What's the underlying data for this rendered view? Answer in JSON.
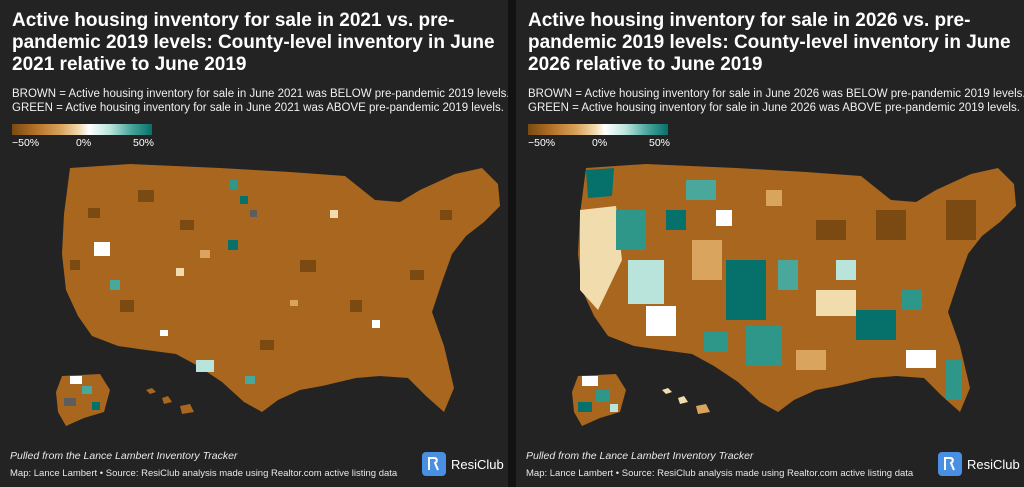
{
  "panels": [
    {
      "title": "Active housing inventory for sale in 2021 vs. pre-pandemic 2019 levels: County-level inventory in June 2021 relative to June 2019",
      "legend_brown": "BROWN = Active housing inventory for sale in June 2021 was BELOW pre-pandemic 2019 levels.",
      "legend_green": "GREEN = Active housing inventory for sale in June 2021 was ABOVE pre-pandemic 2019 levels.",
      "scale_labels": [
        "−50%",
        "0%",
        "50%"
      ],
      "source_note": "Pulled from the Lance Lambert Inventory Tracker",
      "credit": "Map: Lance Lambert • Source: ResiClub analysis made using Realtor.com active listing data",
      "brand": "ResiClub"
    },
    {
      "title": "Active housing inventory for sale in 2026 vs. pre-pandemic 2019 levels: County-level inventory in June 2026 relative to June 2019",
      "legend_brown": "BROWN = Active housing inventory for sale in June 2026 was BELOW pre-pandemic 2019 levels.",
      "legend_green": "GREEN = Active housing inventory for sale in June 2026 was ABOVE pre-pandemic 2019 levels.",
      "scale_labels": [
        "−50%",
        "0%",
        "50%"
      ],
      "source_note": "Pulled from the Lance Lambert Inventory Tracker",
      "credit": "Map: Lance Lambert • Source: ResiClub analysis made using Realtor.com active listing data",
      "brand": "ResiClub"
    }
  ],
  "colors": {
    "brown_dark": "#7a4a12",
    "brown": "#a8661f",
    "tan": "#d9a45e",
    "neutral": "#ffffff",
    "teal_light": "#b9e4dc",
    "teal": "#2f968a",
    "teal_dark": "#06706a",
    "background": "#232323",
    "brand_blue": "#4a90e2"
  },
  "icons": {
    "brand_logo": "resiclub-logo"
  }
}
